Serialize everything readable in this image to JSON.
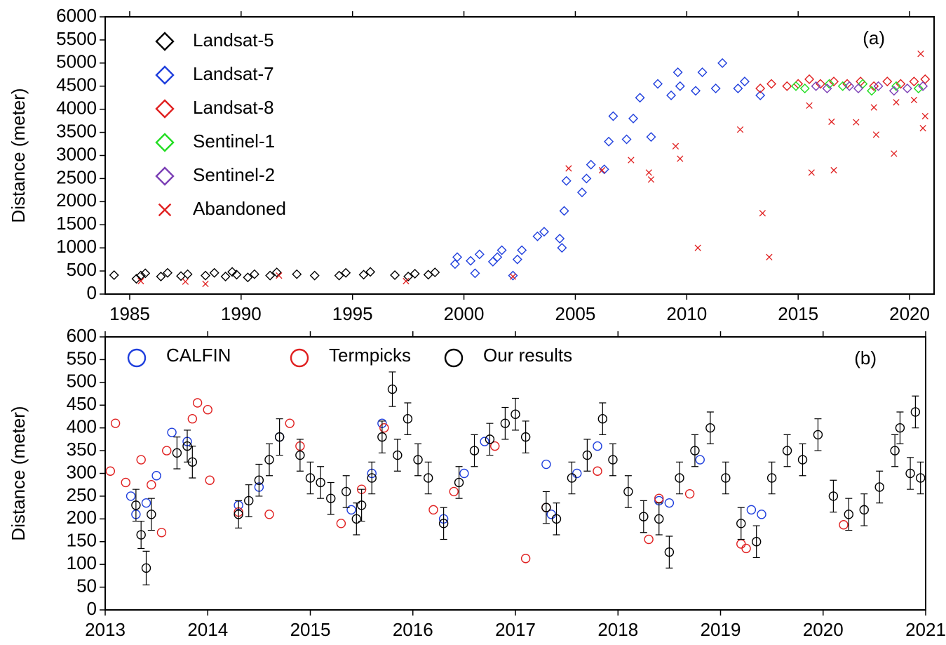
{
  "chart_data": [
    {
      "type": "scatter",
      "ylabel": "Distance (meter)",
      "annotation": "(a)",
      "xlim": [
        1983.9,
        2021.1
      ],
      "xticks": [
        1985,
        1990,
        1995,
        2000,
        2005,
        2010,
        2015,
        2020
      ],
      "ylim": [
        0,
        6000
      ],
      "yticks": [
        0,
        500,
        1000,
        1500,
        2000,
        2500,
        3000,
        3500,
        4000,
        4500,
        5000,
        5500,
        6000
      ],
      "legend": "upper left",
      "legend_layout": "vertical",
      "series": [
        {
          "name": "Landsat-5",
          "color": "#000000",
          "marker": "diamond",
          "x": [
            1984.3,
            1985.3,
            1985.5,
            1985.7,
            1986.4,
            1986.7,
            1987.3,
            1987.6,
            1988.4,
            1988.8,
            1989.3,
            1989.6,
            1989.8,
            1990.3,
            1990.6,
            1991.3,
            1991.6,
            1992.5,
            1993.3,
            1994.4,
            1994.7,
            1995.5,
            1995.8,
            1996.9,
            1997.5,
            1997.8,
            1998.4,
            1998.7
          ],
          "values": [
            410,
            330,
            400,
            450,
            380,
            460,
            390,
            430,
            400,
            460,
            380,
            480,
            420,
            360,
            430,
            400,
            470,
            430,
            400,
            400,
            460,
            420,
            480,
            410,
            380,
            440,
            420,
            470
          ]
        },
        {
          "name": "Landsat-7",
          "color": "#1f3fdd",
          "marker": "diamond",
          "x": [
            1999.6,
            1999.7,
            2000.3,
            2000.5,
            2000.7,
            2001.3,
            2001.5,
            2001.7,
            2002.2,
            2002.4,
            2002.6,
            2003.3,
            2003.6,
            2004.3,
            2004.4,
            2004.5,
            2004.6,
            2005.3,
            2005.5,
            2005.7,
            2006.3,
            2006.5,
            2006.7,
            2007.3,
            2007.6,
            2007.9,
            2008.4,
            2008.7,
            2009.3,
            2009.6,
            2009.7,
            2010.4,
            2010.7,
            2011.3,
            2011.6,
            2012.3,
            2012.6,
            2013.3
          ],
          "values": [
            650,
            800,
            720,
            450,
            860,
            700,
            800,
            950,
            400,
            750,
            950,
            1250,
            1350,
            1200,
            1000,
            1800,
            2450,
            2200,
            2500,
            2800,
            2700,
            3300,
            3850,
            3350,
            3800,
            4250,
            3400,
            4550,
            4300,
            4800,
            4500,
            4400,
            4800,
            4450,
            5000,
            4450,
            4600,
            4300
          ]
        },
        {
          "name": "Landsat-8",
          "color": "#e02020",
          "marker": "diamond",
          "x": [
            2013.3,
            2013.8,
            2014.5,
            2015.0,
            2015.5,
            2016.0,
            2016.6,
            2017.2,
            2017.8,
            2018.4,
            2019.0,
            2019.6,
            2020.2,
            2020.7
          ],
          "values": [
            4450,
            4550,
            4500,
            4550,
            4650,
            4550,
            4600,
            4550,
            4600,
            4500,
            4600,
            4550,
            4600,
            4650
          ]
        },
        {
          "name": "Sentinel-1",
          "color": "#22dd22",
          "marker": "diamond",
          "x": [
            2014.9,
            2015.3,
            2016.4,
            2017.0,
            2017.9,
            2018.3,
            2019.4,
            2020.4
          ],
          "values": [
            4500,
            4450,
            4550,
            4500,
            4550,
            4400,
            4500,
            4450
          ]
        },
        {
          "name": "Sentinel-2",
          "color": "#7b3fb5",
          "marker": "diamond",
          "x": [
            2015.8,
            2016.3,
            2017.3,
            2017.7,
            2018.6,
            2019.3,
            2019.9,
            2020.6
          ],
          "values": [
            4500,
            4450,
            4500,
            4450,
            4500,
            4400,
            4450,
            4500
          ]
        },
        {
          "name": "Abandoned",
          "color": "#e02020",
          "marker": "x",
          "x": [
            1985.5,
            1987.5,
            1988.4,
            1991.7,
            1997.4,
            2002.2,
            2004.7,
            2006.2,
            2007.5,
            2008.3,
            2008.4,
            2009.5,
            2009.7,
            2010.5,
            2012.4,
            2013.4,
            2013.7,
            2015.5,
            2015.6,
            2016.5,
            2016.6,
            2017.6,
            2018.4,
            2018.5,
            2019.3,
            2019.4,
            2020.2,
            2020.5,
            2020.7,
            2020.6
          ],
          "values": [
            280,
            270,
            220,
            400,
            280,
            380,
            2720,
            2680,
            2900,
            2630,
            2480,
            3200,
            2930,
            1000,
            3560,
            1750,
            800,
            4080,
            2630,
            3730,
            2680,
            3720,
            4040,
            3450,
            3040,
            4150,
            4200,
            5200,
            3850,
            3590
          ]
        }
      ]
    },
    {
      "type": "scatter",
      "ylabel": "Distance (meter)",
      "annotation": "(b)",
      "xlim": [
        2013,
        2021
      ],
      "xticks": [
        2013,
        2014,
        2015,
        2016,
        2017,
        2018,
        2019,
        2020,
        2021
      ],
      "ylim": [
        0,
        600
      ],
      "yticks": [
        0,
        50,
        100,
        150,
        200,
        250,
        300,
        350,
        400,
        450,
        500,
        550,
        600
      ],
      "legend": "upper left",
      "legend_layout": "horizontal",
      "series": [
        {
          "name": "CALFIN",
          "color": "#1f3fdd",
          "marker": "circle",
          "x": [
            2013.25,
            2013.3,
            2013.4,
            2013.5,
            2013.65,
            2013.8,
            2014.3,
            2014.5,
            2014.7,
            2015.4,
            2015.6,
            2015.7,
            2016.3,
            2016.5,
            2016.7,
            2017.3,
            2017.35,
            2017.6,
            2017.8,
            2018.4,
            2018.5,
            2018.8,
            2019.3,
            2019.4
          ],
          "values": [
            250,
            210,
            235,
            295,
            390,
            370,
            230,
            270,
            380,
            220,
            300,
            410,
            200,
            300,
            370,
            320,
            210,
            300,
            360,
            240,
            235,
            330,
            220,
            210
          ]
        },
        {
          "name": "Termpicks",
          "color": "#e02020",
          "marker": "circle",
          "x": [
            2013.05,
            2013.1,
            2013.2,
            2013.35,
            2013.45,
            2013.55,
            2013.6,
            2013.85,
            2013.9,
            2014.0,
            2014.02,
            2014.3,
            2014.6,
            2014.8,
            2014.9,
            2015.3,
            2015.5,
            2015.72,
            2016.2,
            2016.4,
            2016.8,
            2017.1,
            2017.3,
            2017.8,
            2018.3,
            2018.4,
            2018.7,
            2019.2,
            2019.25,
            2020.2
          ],
          "values": [
            305,
            410,
            280,
            330,
            275,
            170,
            350,
            420,
            455,
            440,
            285,
            215,
            210,
            410,
            360,
            190,
            265,
            400,
            220,
            260,
            360,
            113,
            225,
            305,
            155,
            245,
            255,
            145,
            135,
            187
          ]
        },
        {
          "name": "Our results",
          "color": "#000000",
          "marker": "circle",
          "x": [
            2013.3,
            2013.35,
            2013.4,
            2013.45,
            2013.7,
            2013.8,
            2013.85,
            2014.3,
            2014.4,
            2014.5,
            2014.6,
            2014.7,
            2014.9,
            2015.0,
            2015.1,
            2015.2,
            2015.35,
            2015.45,
            2015.5,
            2015.6,
            2015.7,
            2015.8,
            2015.85,
            2015.95,
            2016.05,
            2016.15,
            2016.3,
            2016.45,
            2016.6,
            2016.75,
            2016.9,
            2017.0,
            2017.1,
            2017.3,
            2017.4,
            2017.55,
            2017.7,
            2017.85,
            2017.95,
            2018.1,
            2018.25,
            2018.4,
            2018.5,
            2018.6,
            2018.75,
            2018.9,
            2019.05,
            2019.2,
            2019.35,
            2019.5,
            2019.65,
            2019.8,
            2019.95,
            2020.1,
            2020.25,
            2020.4,
            2020.55,
            2020.7,
            2020.75,
            2020.85,
            2020.9,
            2020.95
          ],
          "values": [
            230,
            165,
            92,
            210,
            345,
            360,
            325,
            210,
            240,
            285,
            330,
            380,
            340,
            290,
            280,
            245,
            260,
            200,
            230,
            290,
            380,
            485,
            340,
            420,
            330,
            290,
            190,
            280,
            350,
            375,
            410,
            430,
            380,
            225,
            200,
            290,
            340,
            420,
            330,
            260,
            205,
            200,
            127,
            290,
            350,
            400,
            290,
            190,
            150,
            290,
            350,
            330,
            385,
            250,
            210,
            220,
            270,
            350,
            400,
            300,
            435,
            290
          ],
          "errors": [
            35,
            30,
            37,
            35,
            35,
            35,
            35,
            30,
            35,
            35,
            35,
            40,
            35,
            35,
            35,
            35,
            35,
            35,
            35,
            35,
            35,
            38,
            35,
            35,
            35,
            35,
            35,
            35,
            35,
            35,
            35,
            35,
            35,
            35,
            35,
            35,
            35,
            35,
            35,
            35,
            35,
            35,
            35,
            35,
            35,
            35,
            35,
            35,
            35,
            35,
            35,
            35,
            35,
            35,
            35,
            35,
            35,
            35,
            35,
            35,
            35,
            35
          ]
        }
      ]
    }
  ]
}
